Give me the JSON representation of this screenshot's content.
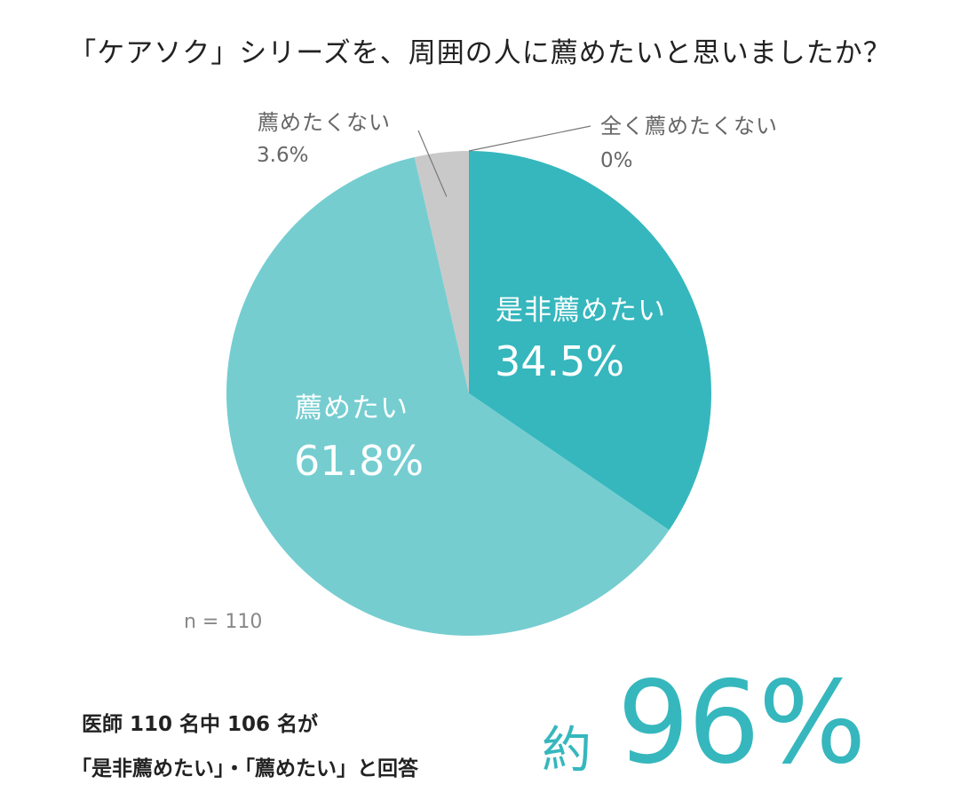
{
  "chart_data": {
    "type": "pie",
    "title": "「ケアソク」シリーズを、周囲の人に薦めたいと思いましたか？",
    "slices": [
      {
        "label": "是非薦めたい",
        "value": 34.5,
        "display": "34.5%",
        "color": "#35b7bd"
      },
      {
        "label": "薦めたい",
        "value": 61.8,
        "display": "61.8%",
        "color": "#75cdd0"
      },
      {
        "label": "薦めたくない",
        "value": 3.6,
        "display": "3.6%",
        "color": "#c9c9c9"
      },
      {
        "label": "全く薦めたくない",
        "value": 0,
        "display": "0%",
        "color": "#c9c9c9"
      }
    ],
    "sample_size": "n = 110"
  },
  "summary": {
    "line1": "医師 110 名中 106 名が",
    "line2": "「是非薦めたい」・「薦めたい」と回答",
    "prefix": "約",
    "big_value": "96%"
  },
  "colors": {
    "accent": "#35b7bd",
    "light_accent": "#75cdd0",
    "neutral": "#c9c9c9"
  }
}
